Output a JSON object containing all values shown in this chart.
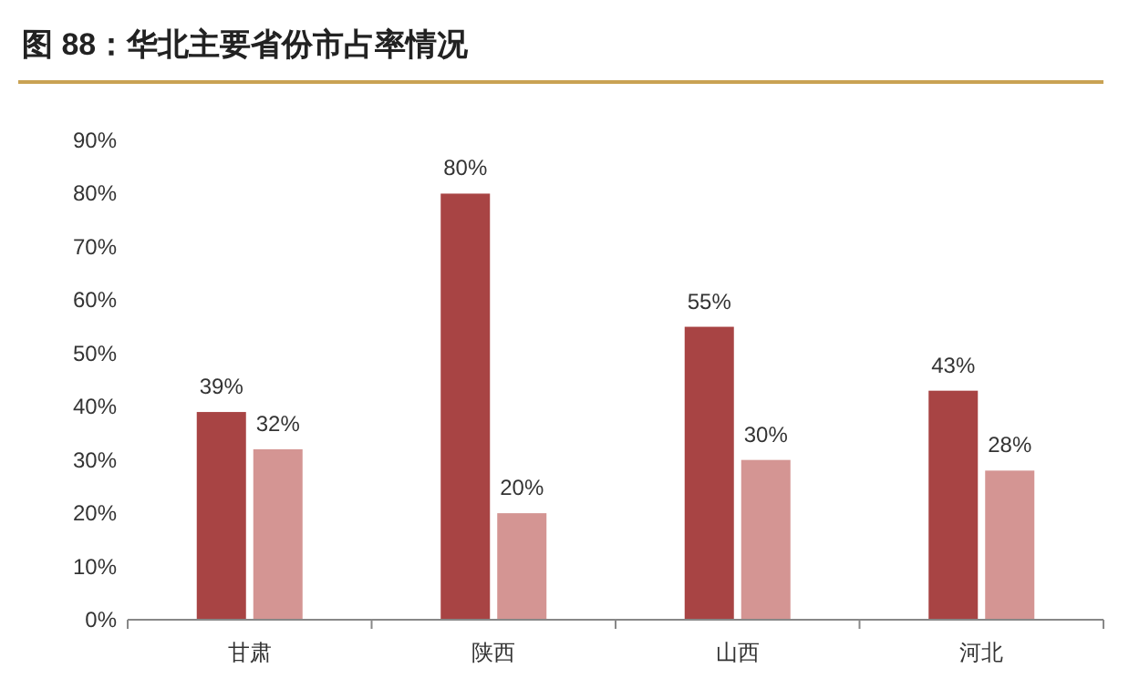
{
  "chart_data": {
    "type": "bar",
    "title": "图 88：华北主要省份市占率情况",
    "categories": [
      "甘肃",
      "陕西",
      "山西",
      "河北"
    ],
    "series": [
      {
        "color": "#a84444",
        "values": [
          39,
          80,
          55,
          43
        ],
        "value_labels": [
          "39%",
          "80%",
          "55%",
          "43%"
        ]
      },
      {
        "color": "#d49593",
        "values": [
          32,
          20,
          30,
          28
        ],
        "value_labels": [
          "32%",
          "20%",
          "30%",
          "28%"
        ]
      }
    ],
    "ylim": [
      0,
      90
    ],
    "yticks": [
      {
        "value": 0,
        "label": "0%"
      },
      {
        "value": 10,
        "label": "10%"
      },
      {
        "value": 20,
        "label": "20%"
      },
      {
        "value": 30,
        "label": "30%"
      },
      {
        "value": 40,
        "label": "40%"
      },
      {
        "value": 50,
        "label": "50%"
      },
      {
        "value": 60,
        "label": "60%"
      },
      {
        "value": 70,
        "label": "70%"
      },
      {
        "value": 80,
        "label": "80%"
      },
      {
        "value": 90,
        "label": "90%"
      }
    ],
    "grid": false
  }
}
